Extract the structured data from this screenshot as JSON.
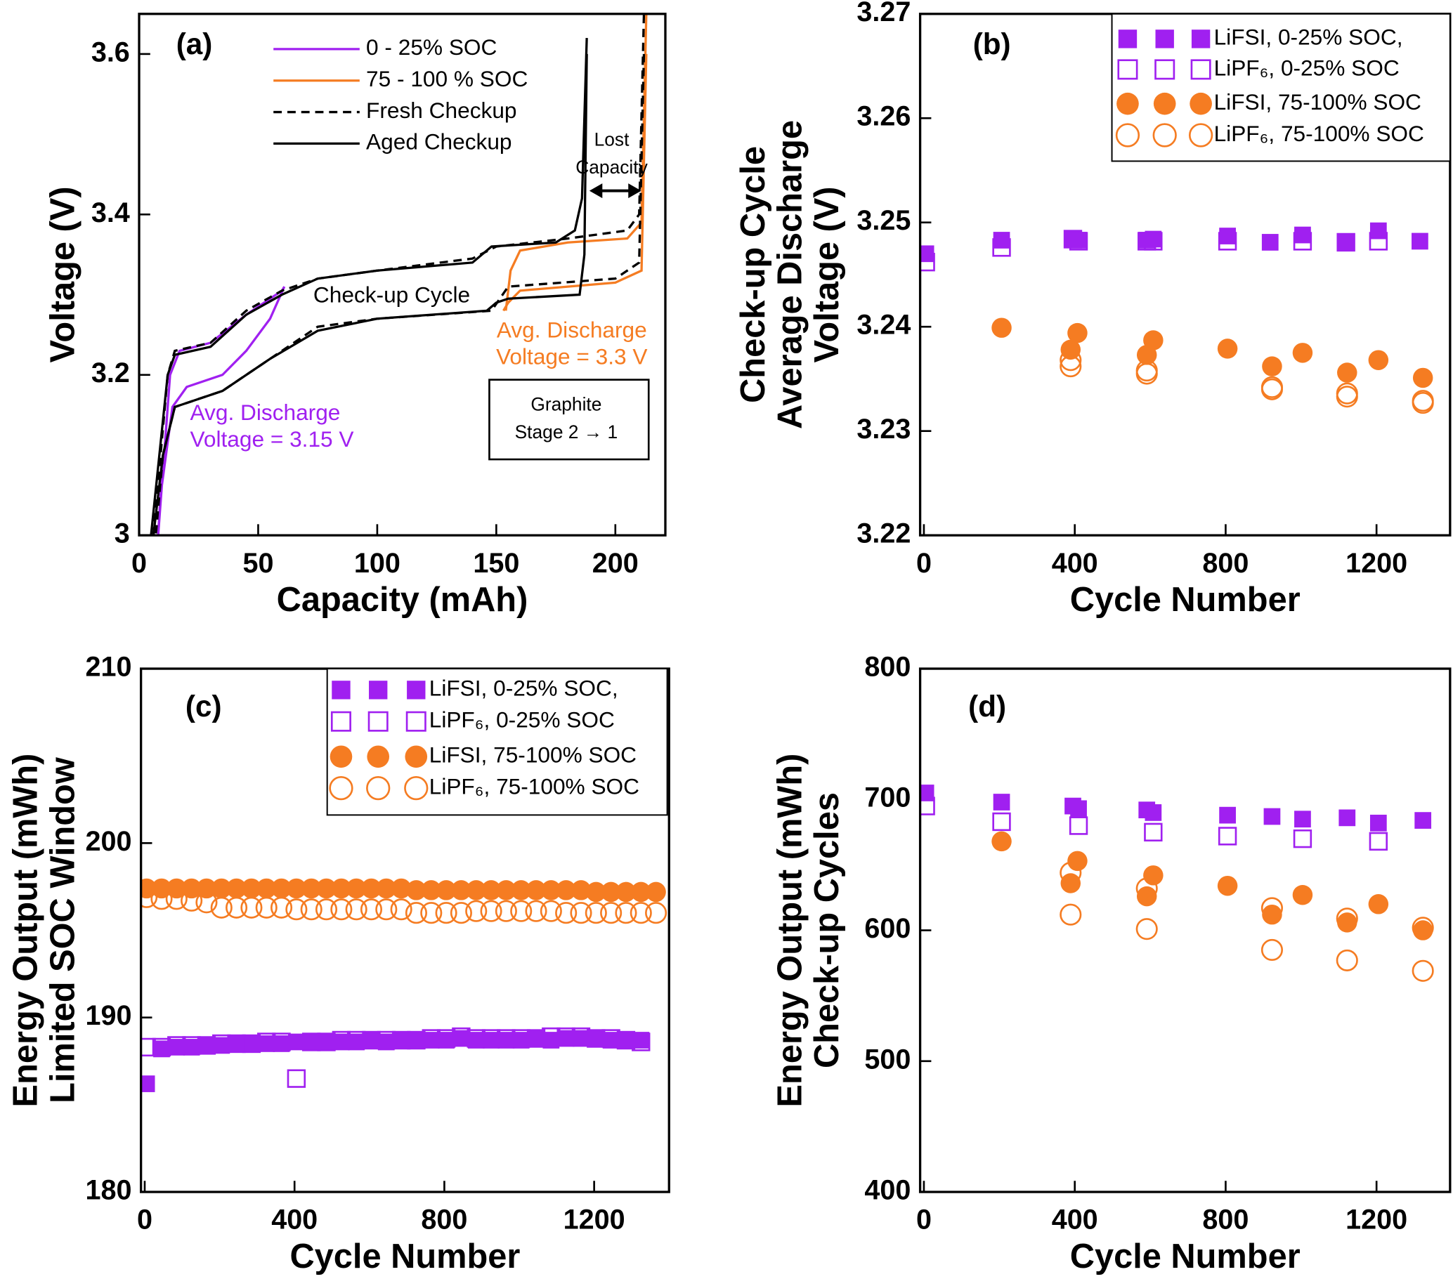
{
  "chart_data": [
    {
      "type": "line",
      "label": "(a)",
      "xlabel": "Capacity (mAh)",
      "ylabel": [
        "Voltage (V)"
      ],
      "xlim": [
        0,
        221
      ],
      "xticks": [
        0,
        50,
        100,
        150,
        200
      ],
      "ylim": [
        3,
        3.65
      ],
      "yticks": [
        3,
        3.2,
        3.4,
        3.6
      ],
      "legend": "upper center",
      "series": [
        {
          "name": "0 - 25% SOC",
          "color": "#a020f0",
          "dash": false,
          "x": [
            8,
            13,
            17,
            30,
            45,
            60,
            61,
            null,
            61,
            55,
            45,
            35,
            20,
            14,
            9,
            8
          ],
          "values": [
            3.0,
            3.2,
            3.23,
            3.24,
            3.275,
            3.305,
            3.31,
            null,
            3.31,
            3.27,
            3.23,
            3.2,
            3.185,
            3.16,
            3.05,
            3.0
          ]
        },
        {
          "name": "75 - 100 % SOC",
          "color": "#f57c22",
          "dash": false,
          "x": [
            154,
            156,
            160,
            180,
            205,
            211,
            213,
            null,
            213,
            211,
            200,
            160,
            155,
            153
          ],
          "values": [
            3.28,
            3.33,
            3.355,
            3.365,
            3.37,
            3.39,
            3.65,
            null,
            3.6,
            3.33,
            3.315,
            3.305,
            3.29,
            3.28
          ]
        },
        {
          "name": "Fresh Checkup",
          "color": "#000000",
          "dash": true,
          "x": [
            6,
            9,
            12,
            15,
            30,
            45,
            60,
            75,
            100,
            140,
            150,
            180,
            205,
            210,
            212,
            null,
            212,
            210,
            200,
            155,
            148,
            100,
            75,
            55,
            35,
            15,
            10,
            7
          ],
          "values": [
            3.0,
            3.1,
            3.2,
            3.23,
            3.24,
            3.28,
            3.305,
            3.32,
            3.33,
            3.345,
            3.36,
            3.37,
            3.38,
            3.4,
            3.65,
            null,
            3.6,
            3.34,
            3.32,
            3.31,
            3.28,
            3.27,
            3.26,
            3.22,
            3.18,
            3.16,
            3.1,
            3.0
          ]
        },
        {
          "name": "Aged Checkup",
          "color": "#000000",
          "dash": false,
          "x": [
            5,
            12,
            15,
            30,
            45,
            60,
            75,
            100,
            140,
            148,
            175,
            183,
            186,
            188,
            null,
            188,
            187,
            185,
            155,
            150,
            146,
            100,
            75,
            55,
            35,
            15,
            10,
            6
          ],
          "values": [
            3.0,
            3.2,
            3.225,
            3.235,
            3.275,
            3.3,
            3.32,
            3.33,
            3.34,
            3.36,
            3.365,
            3.38,
            3.42,
            3.62,
            null,
            3.6,
            3.35,
            3.3,
            3.295,
            3.29,
            3.28,
            3.27,
            3.255,
            3.22,
            3.18,
            3.16,
            3.1,
            3.0
          ]
        }
      ],
      "annotations": [
        {
          "lines": [
            "Check-up Cycle"
          ],
          "color": "#000000"
        },
        {
          "lines": [
            "Avg. Discharge",
            "Voltage = 3.15 V"
          ],
          "color": "#a020f0"
        },
        {
          "lines": [
            "Avg. Discharge",
            "Voltage = 3.3 V"
          ],
          "color": "#f57c22"
        },
        {
          "lines": [
            "Lost",
            "Capacity"
          ],
          "color": "#000000"
        },
        {
          "lines": [
            "Graphite",
            "Stage 2 → 1"
          ],
          "color": "#000000"
        }
      ]
    },
    {
      "type": "scatter",
      "label": "(b)",
      "xlabel": "Cycle Number",
      "ylabel": [
        "Check-up Cycle",
        "Average Discharge",
        "Voltage (V)"
      ],
      "xlim": [
        -10,
        1395
      ],
      "xticks": [
        0,
        400,
        800,
        1200
      ],
      "ylim": [
        3.22,
        3.27
      ],
      "yticks": [
        3.22,
        3.23,
        3.24,
        3.25,
        3.26,
        3.27
      ],
      "legend": "upper right",
      "series": [
        {
          "name": "LiFSI, 0-25% SOC,",
          "color": "#a020f0",
          "marker": "square",
          "filled": true,
          "x": [
            5,
            206,
            395,
            410,
            591,
            608,
            805,
            918,
            1004,
            1119,
            1205,
            1315
          ],
          "values": [
            3.247,
            3.2483,
            3.2484,
            3.2483,
            3.2483,
            3.2484,
            3.2487,
            3.2481,
            3.2488,
            3.2481,
            3.2492,
            3.2482
          ]
        },
        {
          "name": "LiPF₆, 0-25% SOC",
          "color": "#a020f0",
          "marker": "square",
          "filled": false,
          "x": [
            5,
            206,
            395,
            410,
            591,
            608,
            805,
            1004,
            1119,
            1205
          ],
          "values": [
            3.2462,
            3.2476,
            3.2484,
            3.2482,
            3.2482,
            3.2482,
            3.2482,
            3.2482,
            3.2481,
            3.2482
          ]
        },
        {
          "name": "LiFSI, 75-100% SOC",
          "color": "#f57c22",
          "marker": "circle",
          "filled": true,
          "x": [
            206,
            389,
            407,
            591,
            608,
            805,
            923,
            1004,
            1122,
            1205,
            1323
          ],
          "values": [
            3.2399,
            3.2378,
            3.2394,
            3.2373,
            3.2387,
            3.2379,
            3.2362,
            3.2375,
            3.2356,
            3.2368,
            3.2351
          ]
        },
        {
          "name": "LiPF₆, 75-100% SOC",
          "color": "#f57c22",
          "marker": "circle",
          "filled": false,
          "x": [
            389,
            389,
            591,
            591,
            923,
            923,
            1122,
            1122,
            1323,
            1323
          ],
          "values": [
            3.2368,
            3.2362,
            3.2358,
            3.2355,
            3.2342,
            3.234,
            3.2336,
            3.2333,
            3.2329,
            3.2327
          ]
        }
      ]
    },
    {
      "type": "scatter",
      "label": "(c)",
      "xlabel": "Cycle Number",
      "ylabel": [
        "Energy Output (mWh)",
        "Limited SOC Window"
      ],
      "xlim": [
        -10,
        1400
      ],
      "xticks": [
        0,
        400,
        800,
        1200
      ],
      "ylim": [
        180,
        210
      ],
      "yticks": [
        180,
        190,
        200,
        210
      ],
      "legend": "upper right",
      "series": [
        {
          "name": "LiFSI, 0-25% SOC,",
          "color": "#a020f0",
          "marker": "square",
          "filled": true,
          "x": [
            5,
            45,
            85,
            125,
            165,
            205,
            245,
            285,
            325,
            365,
            405,
            445,
            485,
            525,
            565,
            605,
            645,
            685,
            725,
            765,
            805,
            845,
            885,
            925,
            965,
            1005,
            1045,
            1085,
            1125,
            1165,
            1205,
            1245,
            1285,
            1325
          ],
          "values": [
            186.2,
            188.2,
            188.3,
            188.3,
            188.4,
            188.4,
            188.5,
            188.5,
            188.5,
            188.5,
            188.6,
            188.6,
            188.6,
            188.6,
            188.6,
            188.7,
            188.6,
            188.7,
            188.7,
            188.7,
            188.7,
            188.8,
            188.7,
            188.7,
            188.7,
            188.7,
            188.8,
            188.7,
            188.8,
            188.8,
            188.8,
            188.7,
            188.7,
            188.7
          ]
        },
        {
          "name": "LiPF₆, 0-25% SOC",
          "color": "#a020f0",
          "marker": "square",
          "filled": false,
          "x": [
            5,
            45,
            85,
            125,
            165,
            205,
            245,
            285,
            325,
            365,
            405,
            445,
            485,
            525,
            565,
            605,
            645,
            685,
            725,
            765,
            805,
            845,
            885,
            925,
            965,
            1005,
            1045,
            1085,
            1125,
            1165,
            1205,
            1245,
            1285,
            1325
          ],
          "values": [
            188.3,
            188.3,
            188.4,
            188.4,
            188.4,
            188.5,
            188.5,
            188.5,
            188.6,
            188.6,
            186.5,
            188.6,
            188.6,
            188.7,
            188.7,
            188.7,
            188.7,
            188.7,
            188.7,
            188.8,
            188.8,
            188.9,
            188.8,
            188.8,
            188.8,
            188.8,
            188.8,
            188.9,
            188.9,
            188.9,
            188.8,
            188.8,
            188.7,
            188.6
          ]
        },
        {
          "name": "LiFSI, 75-100% SOC",
          "color": "#f57c22",
          "marker": "circle",
          "filled": true,
          "x": [
            5,
            45,
            85,
            125,
            165,
            205,
            245,
            285,
            325,
            365,
            405,
            445,
            485,
            525,
            565,
            605,
            645,
            685,
            725,
            765,
            805,
            845,
            885,
            925,
            965,
            1005,
            1045,
            1085,
            1125,
            1165,
            1205,
            1245,
            1285,
            1325,
            1365
          ],
          "values": [
            197.4,
            197.4,
            197.4,
            197.4,
            197.4,
            197.4,
            197.4,
            197.4,
            197.4,
            197.4,
            197.4,
            197.4,
            197.4,
            197.4,
            197.4,
            197.4,
            197.4,
            197.4,
            197.3,
            197.3,
            197.3,
            197.3,
            197.3,
            197.3,
            197.3,
            197.3,
            197.3,
            197.3,
            197.3,
            197.3,
            197.2,
            197.2,
            197.2,
            197.2,
            197.2
          ]
        },
        {
          "name": "LiPF₆, 75-100% SOC",
          "color": "#f57c22",
          "marker": "circle",
          "filled": false,
          "x": [
            5,
            45,
            85,
            125,
            165,
            205,
            245,
            285,
            325,
            365,
            405,
            445,
            485,
            525,
            565,
            605,
            645,
            685,
            725,
            765,
            805,
            845,
            885,
            925,
            965,
            1005,
            1045,
            1085,
            1125,
            1165,
            1205,
            1245,
            1285,
            1325,
            1365
          ],
          "values": [
            196.9,
            196.8,
            196.8,
            196.7,
            196.6,
            196.3,
            196.3,
            196.3,
            196.3,
            196.3,
            196.2,
            196.2,
            196.2,
            196.2,
            196.2,
            196.2,
            196.2,
            196.2,
            196.0,
            196.0,
            196.0,
            196.0,
            196.1,
            196.1,
            196.1,
            196.1,
            196.1,
            196.1,
            196.0,
            196.0,
            196.0,
            196.0,
            196.0,
            196.0,
            196.0
          ]
        }
      ]
    },
    {
      "type": "scatter",
      "label": "(d)",
      "xlabel": "Cycle Number",
      "ylabel": [
        "Energy Output (mWh)",
        "Check-up Cycles"
      ],
      "xlim": [
        -10,
        1395
      ],
      "xticks": [
        0,
        400,
        800,
        1200
      ],
      "ylim": [
        400,
        800
      ],
      "yticks": [
        400,
        500,
        600,
        700,
        800
      ],
      "series": [
        {
          "name": "LiFSI, 0-25% SOC,",
          "color": "#a020f0",
          "marker": "square",
          "filled": true,
          "x": [
            5,
            206,
            395,
            410,
            591,
            608,
            805,
            923,
            1004,
            1122,
            1205,
            1323
          ],
          "values": [
            705,
            698,
            695,
            693,
            692,
            690,
            688,
            687,
            685,
            686,
            682,
            684
          ]
        },
        {
          "name": "LiPF₆, 0-25% SOC",
          "color": "#a020f0",
          "marker": "square",
          "filled": false,
          "x": [
            5,
            206,
            410,
            608,
            805,
            1004,
            1205
          ],
          "values": [
            695,
            683,
            680,
            675,
            672,
            670,
            668
          ]
        },
        {
          "name": "LiFSI, 75-100% SOC",
          "color": "#f57c22",
          "marker": "circle",
          "filled": true,
          "x": [
            206,
            389,
            407,
            591,
            608,
            805,
            923,
            1004,
            1122,
            1205,
            1323
          ],
          "values": [
            668,
            636,
            653,
            626,
            642,
            634,
            612,
            627,
            606,
            620,
            600
          ]
        },
        {
          "name": "LiPF₆, 75-100% SOC",
          "color": "#f57c22",
          "marker": "circle",
          "filled": false,
          "x": [
            389,
            389,
            591,
            591,
            923,
            923,
            1122,
            1122,
            1323,
            1323
          ],
          "values": [
            644,
            612,
            632,
            601,
            617,
            585,
            609,
            577,
            602,
            569
          ]
        }
      ]
    }
  ]
}
